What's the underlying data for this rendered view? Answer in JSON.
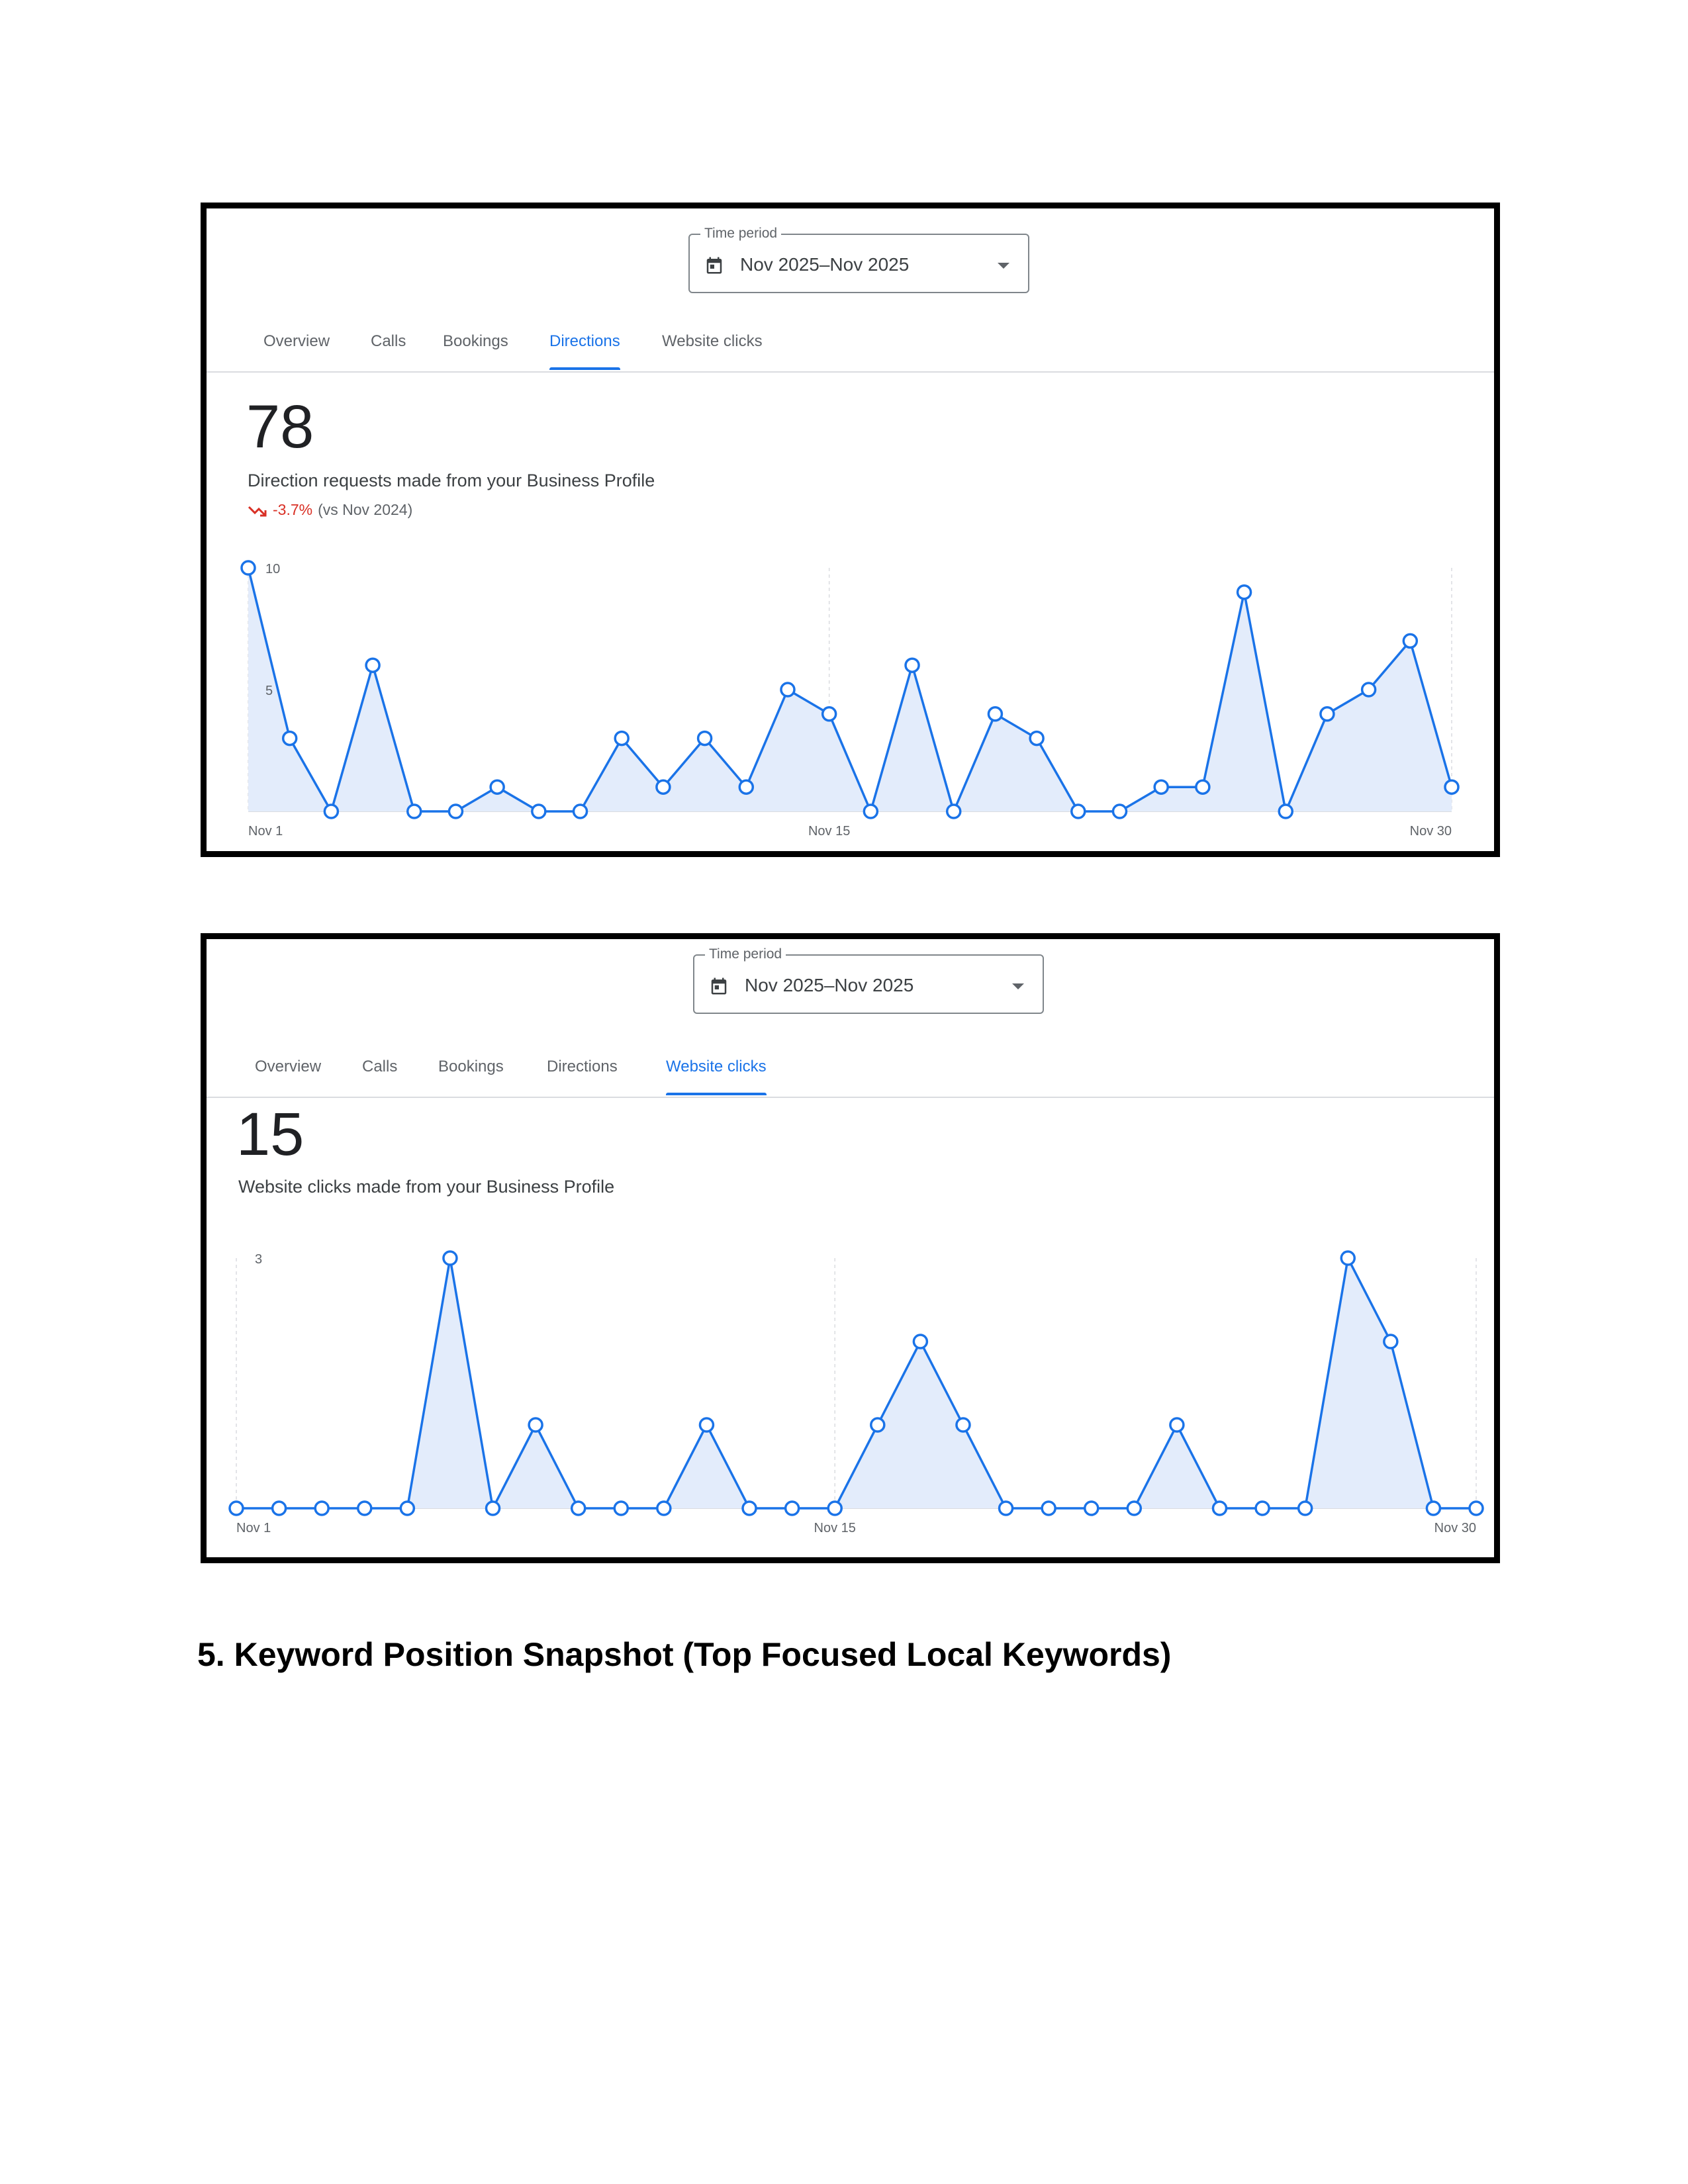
{
  "panel1": {
    "time_period": {
      "legend": "Time period",
      "value": "Nov 2025–Nov 2025"
    },
    "tabs": [
      {
        "label": "Overview",
        "active": false
      },
      {
        "label": "Calls",
        "active": false
      },
      {
        "label": "Bookings",
        "active": false
      },
      {
        "label": "Directions",
        "active": true
      },
      {
        "label": "Website clicks",
        "active": false
      }
    ],
    "total": "78",
    "description": "Direction requests made from your Business Profile",
    "change": {
      "percent": "-3.7%",
      "comparison": "(vs Nov 2024)",
      "direction": "down",
      "color": "#d93025"
    }
  },
  "panel2": {
    "time_period": {
      "legend": "Time period",
      "value": "Nov 2025–Nov 2025"
    },
    "tabs": [
      {
        "label": "Overview",
        "active": false
      },
      {
        "label": "Calls",
        "active": false
      },
      {
        "label": "Bookings",
        "active": false
      },
      {
        "label": "Directions",
        "active": false
      },
      {
        "label": "Website clicks",
        "active": true
      }
    ],
    "total": "15",
    "description": "Website clicks made from your Business Profile"
  },
  "chart_data": [
    {
      "type": "area",
      "series": [
        {
          "values": [
            10,
            3,
            0,
            6,
            0,
            0,
            1,
            0,
            0,
            3,
            1,
            3,
            1,
            5,
            4,
            0,
            6,
            0,
            4,
            3,
            0,
            0,
            1,
            1,
            9,
            0,
            4,
            5,
            7,
            1
          ]
        }
      ],
      "x": [
        1,
        2,
        3,
        4,
        5,
        6,
        7,
        8,
        9,
        10,
        11,
        12,
        13,
        14,
        15,
        16,
        17,
        18,
        19,
        20,
        21,
        22,
        23,
        24,
        25,
        26,
        27,
        28,
        29,
        30
      ],
      "x_tick_labels": [
        "Nov 1",
        "Nov 15",
        "Nov 30"
      ],
      "y_tick_labels": [
        "10",
        "5"
      ],
      "ylim": [
        0,
        10
      ],
      "color": "#1a73e8",
      "fill_color": "#e3ecfb"
    },
    {
      "type": "area",
      "series": [
        {
          "values": [
            0,
            0,
            0,
            0,
            0,
            3,
            0,
            1,
            0,
            0,
            0,
            1,
            0,
            0,
            0,
            1,
            2,
            1,
            0,
            0,
            0,
            0,
            1,
            0,
            0,
            0,
            3,
            2,
            0,
            0
          ]
        }
      ],
      "x": [
        1,
        2,
        3,
        4,
        5,
        6,
        7,
        8,
        9,
        10,
        11,
        12,
        13,
        14,
        15,
        16,
        17,
        18,
        19,
        20,
        21,
        22,
        23,
        24,
        25,
        26,
        27,
        28,
        29,
        30
      ],
      "x_tick_labels": [
        "Nov 1",
        "Nov 15",
        "Nov 30"
      ],
      "y_tick_labels": [
        "3"
      ],
      "ylim": [
        0,
        3
      ],
      "color": "#1a73e8",
      "fill_color": "#e3ecfb"
    }
  ],
  "section": {
    "heading": "5. Keyword Position Snapshot (Top Focused Local Keywords)"
  }
}
